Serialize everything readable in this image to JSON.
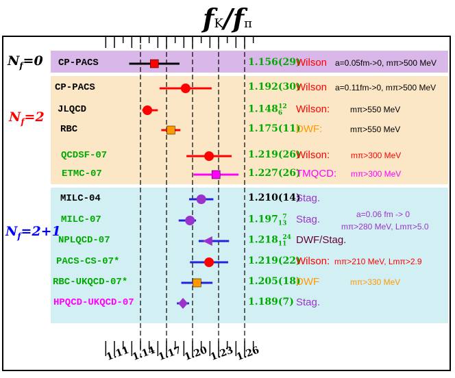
{
  "title": {
    "main": "f",
    "sub_k": "K",
    "slash": "/",
    "main2": "f",
    "sub_pi": "π"
  },
  "colors": {
    "purple_band": "#d9b7e8",
    "orange_band": "#fbe7c6",
    "cyan_band": "#d2f0f4"
  },
  "groups": [
    {
      "label": "N",
      "sub": "f",
      "suffix": "=0",
      "color": "#000000"
    },
    {
      "label": "N",
      "sub": "f",
      "suffix": "=2",
      "color": "#ff0000"
    },
    {
      "label": "N",
      "sub": "f",
      "suffix": "=2+1",
      "color": "#0000ff"
    }
  ],
  "chart_data": {
    "type": "scatter",
    "title": "fK/fπ",
    "xlim": [
      1.095,
      1.275
    ],
    "dashed_lines": [
      1.14,
      1.17,
      1.2,
      1.23,
      1.26
    ],
    "ticks": [
      "1.11",
      "1.14",
      "1.17",
      "1.20",
      "1.23",
      "1.26"
    ],
    "points": [
      {
        "collab": "CP-PACS",
        "value": 1.156,
        "err_lo": 0.029,
        "err_hi": 0.029,
        "marker": "square",
        "color": "#ff0000",
        "text": "1.156(29)",
        "text_color": "#00aa00",
        "action": "Wilson",
        "action_color": "#ff0000",
        "note": "a=0.05fm->0, mπ>500 MeV",
        "note_color": "#000000",
        "collab_color": "#000000"
      },
      {
        "collab": "CP-PACS",
        "value": 1.192,
        "err_lo": 0.03,
        "err_hi": 0.03,
        "marker": "circle",
        "color": "#ff0000",
        "text": "1.192(30)",
        "text_color": "#00aa00",
        "action": "Wilson",
        "action_color": "#ff0000",
        "note": "a=0.11fm->0, mπ>500 MeV",
        "note_color": "#000000",
        "collab_color": "#000000"
      },
      {
        "collab": "JLQCD",
        "value": 1.148,
        "err_lo": 0.006,
        "err_hi": 0.012,
        "marker": "circle",
        "color": "#ff0000",
        "text": "1.148",
        "sub": "6",
        "sup": "12",
        "text_color": "#00aa00",
        "action": "Wilson:",
        "action_color": "#ff0000",
        "note": "mπ>550 MeV",
        "note_color": "#000000",
        "collab_color": "#000000"
      },
      {
        "collab": "RBC",
        "value": 1.175,
        "err_lo": 0.011,
        "err_hi": 0.011,
        "marker": "square",
        "color": "#ff9900",
        "text": "1.175(11)",
        "text_color": "#00aa00",
        "action": "DWF:",
        "action_color": "#ff9900",
        "note": "mπ>550 MeV",
        "note_color": "#000000",
        "collab_color": "#000000"
      },
      {
        "collab": "QCDSF-07",
        "value": 1.219,
        "err_lo": 0.026,
        "err_hi": 0.026,
        "marker": "circle",
        "color": "#ff0000",
        "text": "1.219(26)",
        "text_color": "#00aa00",
        "action": "Wilson:",
        "action_color": "#ff0000",
        "note": "mπ>300 MeV",
        "note_color": "#ff0000",
        "collab_color": "#00aa00"
      },
      {
        "collab": "ETMC-07",
        "value": 1.227,
        "err_lo": 0.026,
        "err_hi": 0.026,
        "marker": "square",
        "color": "#ff00ff",
        "text": "1.227(26)",
        "text_color": "#00aa00",
        "action": "TMQCD:",
        "action_color": "#ff00ff",
        "note": "mπ>300 MeV",
        "note_color": "#ff00ff",
        "collab_color": "#00aa00"
      },
      {
        "collab": "MILC-04",
        "value": 1.21,
        "err_lo": 0.014,
        "err_hi": 0.014,
        "marker": "circle",
        "color": "#9933cc",
        "text": "1.210(14)",
        "text_color": "#000000",
        "action": "Stag.",
        "action_color": "#9933cc",
        "note": "",
        "note_color": "#000000",
        "collab_color": "#000000"
      },
      {
        "collab": "MILC-07",
        "value": 1.197,
        "err_lo": 0.013,
        "err_hi": 0.007,
        "marker": "circle",
        "color": "#9933cc",
        "text": "1.197",
        "sub": "13",
        "sup": "7",
        "text_color": "#00aa00",
        "action": "Stag.",
        "action_color": "#9933cc",
        "note": "",
        "note_color": "#9933cc",
        "collab_color": "#00aa00"
      },
      {
        "collab": "NPLQCD-07",
        "value": 1.218,
        "err_lo": 0.011,
        "err_hi": 0.024,
        "marker": "triangle-left",
        "color": "#9933cc",
        "text": "1.218",
        "sub": "11",
        "sup": "24",
        "text_color": "#00aa00",
        "action": "DWF/Stag.",
        "action_color": "#660033",
        "note": "",
        "note_color": "#000000",
        "collab_color": "#00aa00"
      },
      {
        "collab": "PACS-CS-07*",
        "value": 1.219,
        "err_lo": 0.022,
        "err_hi": 0.022,
        "marker": "circle",
        "color": "#ff0000",
        "text": "1.219(22)",
        "text_color": "#00aa00",
        "action": "Wilson:",
        "action_color": "#ff0000",
        "note": "mπ>210 MeV, Lmπ>2.9",
        "note_color": "#ff0000",
        "collab_color": "#00aa00"
      },
      {
        "collab": "RBC-UKQCD-07*",
        "value": 1.205,
        "err_lo": 0.018,
        "err_hi": 0.018,
        "marker": "square",
        "color": "#ff9900",
        "text": "1.205(18)",
        "text_color": "#00aa00",
        "action": "DWF",
        "action_color": "#ff9900",
        "note": "mπ>330 MeV",
        "note_color": "#ff9900",
        "collab_color": "#00aa00"
      },
      {
        "collab": "HPQCD-UKQCD-07",
        "value": 1.189,
        "err_lo": 0.007,
        "err_hi": 0.007,
        "marker": "diamond",
        "color": "#9933cc",
        "text": "1.189(7)",
        "text_color": "#00aa00",
        "action": "Stag.",
        "action_color": "#9933cc",
        "note": "",
        "note_color": "#000000",
        "collab_color": "#ff00ff"
      }
    ],
    "milc_note_1": "a=0.06 fm -> 0",
    "milc_note_2": "mπ>280 MeV, Lmπ>5.0"
  }
}
